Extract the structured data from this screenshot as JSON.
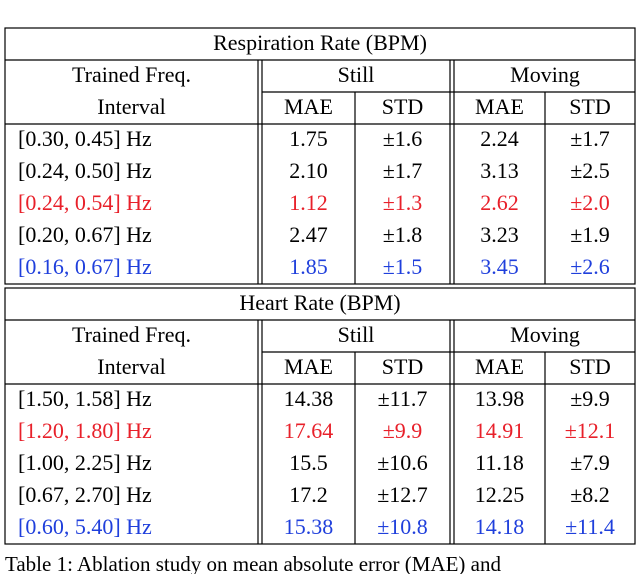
{
  "tables": [
    {
      "title": "Respiration Rate (BPM)",
      "header": {
        "first_line": "Trained Freq.",
        "second_line": "Interval",
        "group_a": "Still",
        "group_b": "Moving",
        "columns": [
          "MAE",
          "STD",
          "MAE",
          "STD"
        ]
      },
      "rows": [
        {
          "interval": "[0.30, 0.45] Hz",
          "cells": [
            "1.75",
            "±1.6",
            "2.24",
            "±1.7"
          ],
          "color": "#000000"
        },
        {
          "interval": "[0.24, 0.50] Hz",
          "cells": [
            "2.10",
            "±1.7",
            "3.13",
            "±2.5"
          ],
          "color": "#000000"
        },
        {
          "interval": "[0.24, 0.54] Hz",
          "cells": [
            "1.12",
            "±1.3",
            "2.62",
            "±2.0"
          ],
          "color": "#e8202a"
        },
        {
          "interval": "[0.20, 0.67] Hz",
          "cells": [
            "2.47",
            "±1.8",
            "3.23",
            "±1.9"
          ],
          "color": "#000000"
        },
        {
          "interval": "[0.16, 0.67] Hz",
          "cells": [
            "1.85",
            "±1.5",
            "3.45",
            "±2.6"
          ],
          "color": "#1f3fdc"
        }
      ]
    },
    {
      "title": "Heart Rate (BPM)",
      "header": {
        "first_line": "Trained Freq.",
        "second_line": "Interval",
        "group_a": "Still",
        "group_b": "Moving",
        "columns": [
          "MAE",
          "STD",
          "MAE",
          "STD"
        ]
      },
      "rows": [
        {
          "interval": "[1.50, 1.58] Hz",
          "cells": [
            "14.38",
            "±11.7",
            "13.98",
            "±9.9"
          ],
          "color": "#000000"
        },
        {
          "interval": "[1.20, 1.80] Hz",
          "cells": [
            "17.64",
            "±9.9",
            "14.91",
            "±12.1"
          ],
          "color": "#e8202a"
        },
        {
          "interval": "[1.00, 2.25] Hz",
          "cells": [
            "15.5",
            "±10.6",
            "11.18",
            "±7.9"
          ],
          "color": "#000000"
        },
        {
          "interval": "[0.67, 2.70] Hz",
          "cells": [
            "17.2",
            "±12.7",
            "12.25",
            "±8.2"
          ],
          "color": "#000000"
        },
        {
          "interval": "[0.60, 5.40] Hz",
          "cells": [
            "15.38",
            "±10.8",
            "14.18",
            "±11.4"
          ],
          "color": "#1f3fdc"
        }
      ]
    }
  ],
  "caption": "Table 1: Ablation study on mean absolute error (MAE) and"
}
